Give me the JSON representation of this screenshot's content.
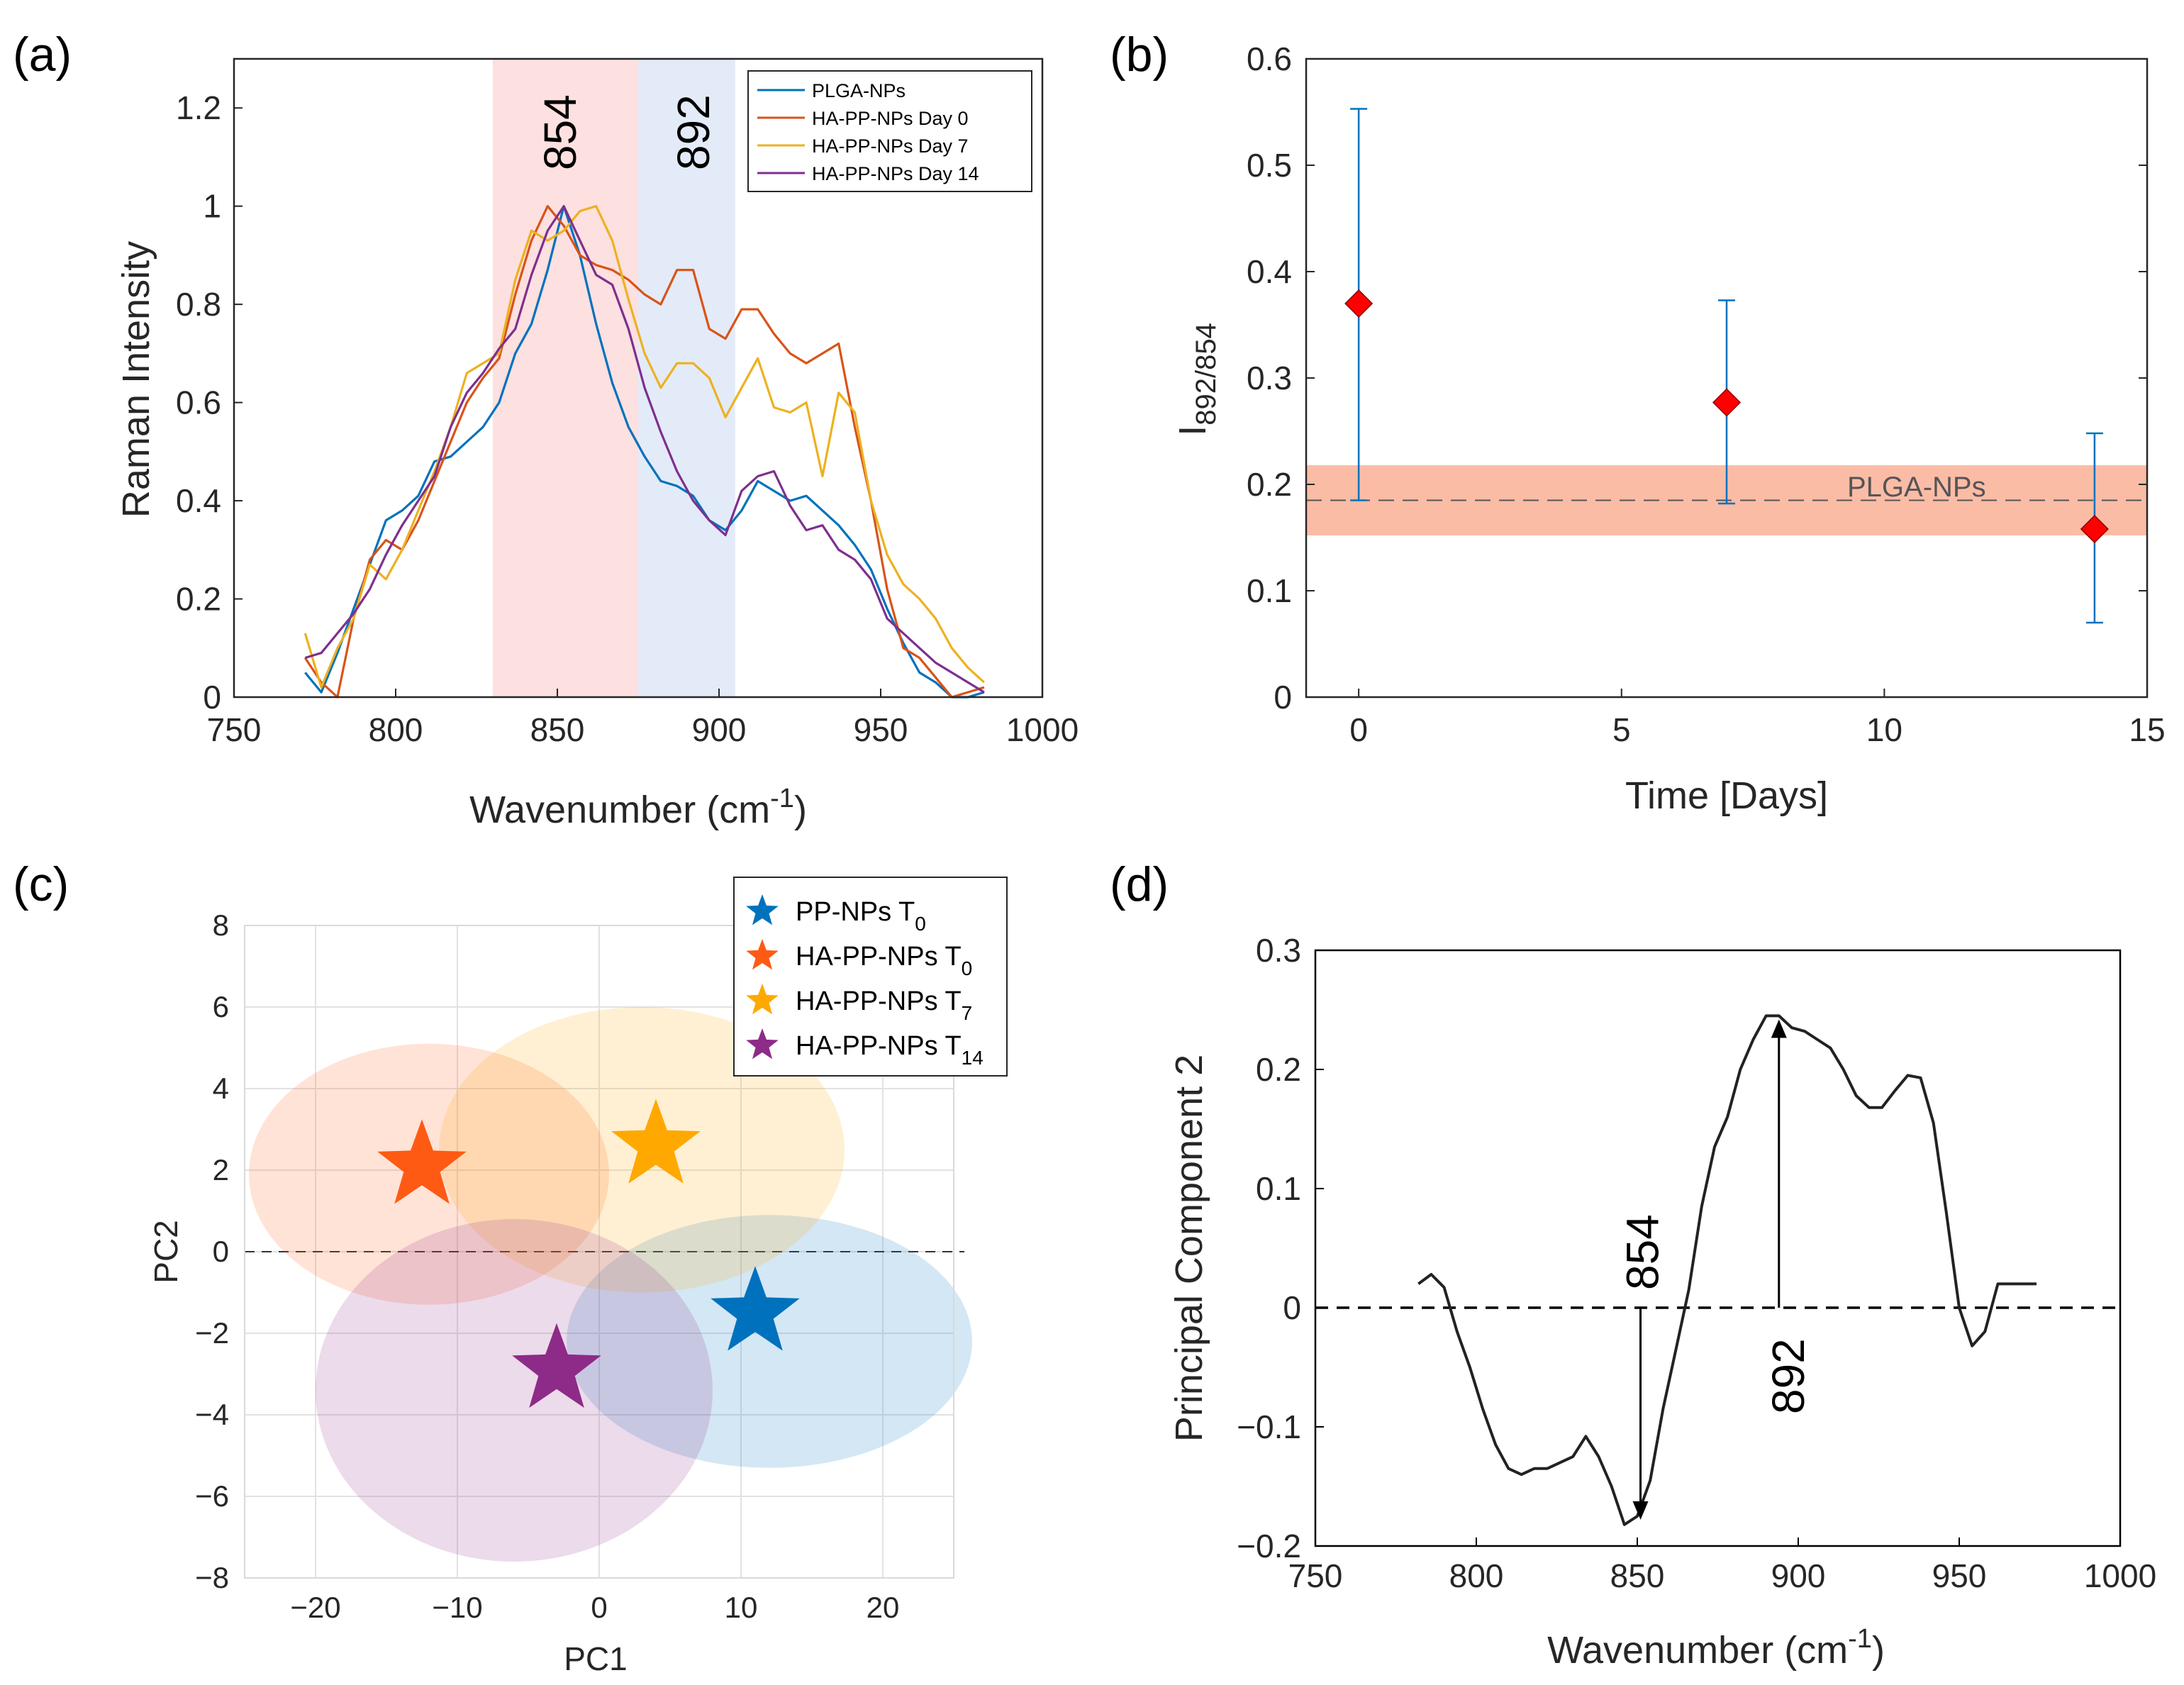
{
  "panels": {
    "a": {
      "label": "(a)"
    },
    "b": {
      "label": "(b)"
    },
    "c": {
      "label": "(c)"
    },
    "d": {
      "label": "(d)"
    }
  },
  "chart_data": [
    {
      "id": "a",
      "type": "line",
      "xlabel": "Wavenumber (cm",
      "xlabel_sup": "-1",
      "xlabel_end": ")",
      "ylabel": "Raman Intensity",
      "xlim": [
        750,
        1000
      ],
      "ylim": [
        0,
        1.3
      ],
      "xticks": [
        750,
        800,
        850,
        900,
        950,
        1000
      ],
      "yticks": [
        0,
        0.2,
        0.4,
        0.6,
        0.8,
        1,
        1.2
      ],
      "yticklabels": [
        "0",
        "0.2",
        "0.4",
        "0.6",
        "0.8",
        "1",
        "1.2"
      ],
      "bands": [
        {
          "label": "854",
          "from": 830,
          "to": 875,
          "color": "#fde0e0"
        },
        {
          "label": "892",
          "from": 875,
          "to": 905,
          "color": "#e3ebf8"
        }
      ],
      "x": [
        772,
        777,
        782,
        787,
        792,
        797,
        802,
        807,
        812,
        817,
        822,
        827,
        832,
        837,
        842,
        847,
        852,
        857,
        862,
        867,
        872,
        877,
        882,
        887,
        892,
        897,
        902,
        907,
        912,
        917,
        922,
        927,
        932,
        937,
        942,
        947,
        952,
        957,
        962,
        967,
        972,
        977,
        982
      ],
      "series": [
        {
          "name": "PLGA-NPs",
          "color": "#0072bd",
          "values": [
            0.05,
            0.01,
            0.09,
            0.18,
            0.27,
            0.36,
            0.38,
            0.41,
            0.48,
            0.49,
            0.52,
            0.55,
            0.6,
            0.7,
            0.76,
            0.87,
            1.0,
            0.9,
            0.76,
            0.64,
            0.55,
            0.49,
            0.44,
            0.43,
            0.41,
            0.36,
            0.34,
            0.38,
            0.44,
            0.42,
            0.4,
            0.41,
            0.38,
            0.35,
            0.31,
            0.26,
            0.18,
            0.11,
            0.05,
            0.03,
            0.0,
            0.0,
            0.01
          ]
        },
        {
          "name": "HA-PP-NPs Day 0",
          "color": "#d95319",
          "values": [
            0.08,
            0.03,
            0.0,
            0.16,
            0.28,
            0.32,
            0.3,
            0.36,
            0.44,
            0.52,
            0.6,
            0.65,
            0.69,
            0.82,
            0.93,
            1.0,
            0.96,
            0.9,
            0.88,
            0.87,
            0.85,
            0.82,
            0.8,
            0.87,
            0.87,
            0.75,
            0.73,
            0.79,
            0.79,
            0.74,
            0.7,
            0.68,
            0.7,
            0.72,
            0.55,
            0.4,
            0.22,
            0.1,
            0.08,
            0.04,
            0.0,
            0.01,
            0.02
          ]
        },
        {
          "name": "HA-PP-NPs Day 7",
          "color": "#edb120",
          "values": [
            0.13,
            0.02,
            0.1,
            0.16,
            0.27,
            0.24,
            0.3,
            0.38,
            0.46,
            0.55,
            0.66,
            0.68,
            0.7,
            0.85,
            0.95,
            0.93,
            0.95,
            0.99,
            1.0,
            0.93,
            0.81,
            0.7,
            0.63,
            0.68,
            0.68,
            0.65,
            0.57,
            0.63,
            0.69,
            0.59,
            0.58,
            0.6,
            0.45,
            0.62,
            0.58,
            0.4,
            0.29,
            0.23,
            0.2,
            0.16,
            0.1,
            0.06,
            0.03
          ]
        },
        {
          "name": "HA-PP-NPs Day 14",
          "color": "#7e2f8e",
          "values": [
            0.08,
            0.09,
            0.13,
            0.17,
            0.22,
            0.29,
            0.35,
            0.4,
            0.45,
            0.55,
            0.62,
            0.66,
            0.71,
            0.75,
            0.86,
            0.95,
            1.0,
            0.93,
            0.86,
            0.84,
            0.75,
            0.63,
            0.54,
            0.46,
            0.4,
            0.36,
            0.33,
            0.42,
            0.45,
            0.46,
            0.39,
            0.34,
            0.35,
            0.3,
            0.28,
            0.24,
            0.16,
            0.13,
            0.1,
            0.07,
            0.05,
            0.03,
            0.01
          ]
        }
      ],
      "legend_position": "top-right"
    },
    {
      "id": "b",
      "type": "scatter",
      "xlabel": "Time [Days]",
      "ylabel": "I",
      "ylabel_sub": "892/854",
      "xlim": [
        -1,
        15
      ],
      "ylim": [
        0,
        0.6
      ],
      "xticks": [
        0,
        5,
        10,
        15
      ],
      "yticks": [
        0,
        0.1,
        0.2,
        0.3,
        0.4,
        0.5,
        0.6
      ],
      "points": [
        {
          "x": 0,
          "y": 0.37,
          "err_low": 0.185,
          "err_high": 0.553
        },
        {
          "x": 7,
          "y": 0.277,
          "err_low": 0.182,
          "err_high": 0.373
        },
        {
          "x": 14,
          "y": 0.158,
          "err_low": 0.07,
          "err_high": 0.248
        }
      ],
      "reference": {
        "label": "PLGA-NPs",
        "mean": 0.185,
        "low": 0.152,
        "high": 0.218
      },
      "marker_color": "#ff0000",
      "errorbar_color": "#0072bd",
      "band_color": "#fbbca6"
    },
    {
      "id": "c",
      "type": "scatter",
      "xlabel": "PC1",
      "ylabel": "PC2",
      "xlim": [
        -25,
        25
      ],
      "ylim": [
        -8,
        8
      ],
      "xticks": [
        -20,
        -10,
        0,
        10,
        20
      ],
      "xticklabels": [
        "−20",
        "−10",
        "0",
        "10",
        "20"
      ],
      "yticks": [
        -8,
        -6,
        -4,
        -2,
        0,
        2,
        4,
        6,
        8
      ],
      "yticklabels": [
        "−8",
        "−6",
        "−4",
        "−2",
        "0",
        "2",
        "4",
        "6",
        "8"
      ],
      "grid": true,
      "series": [
        {
          "name": "PP-NPs T",
          "sub": "0",
          "color": "#0072bd",
          "x": 11,
          "y": -1.5,
          "ellipse": {
            "cx": 12,
            "cy": -2.2,
            "rx": 14.3,
            "ry": 3.1
          }
        },
        {
          "name": "HA-PP-NPs T",
          "sub": "0",
          "color": "#ff5a14",
          "x": -12.5,
          "y": 2.1,
          "ellipse": {
            "cx": -12,
            "cy": 1.9,
            "rx": 12.7,
            "ry": 3.2
          }
        },
        {
          "name": "HA-PP-NPs T",
          "sub": "7",
          "color": "#ffa800",
          "x": 4,
          "y": 2.6,
          "ellipse": {
            "cx": 3,
            "cy": 2.5,
            "rx": 14.3,
            "ry": 3.5
          }
        },
        {
          "name": "HA-PP-NPs T",
          "sub": "14",
          "color": "#8e2a87",
          "x": -3,
          "y": -2.9,
          "ellipse": {
            "cx": -6,
            "cy": -3.4,
            "rx": 14,
            "ry": 4.2
          }
        }
      ],
      "legend_position": "top-right"
    },
    {
      "id": "d",
      "type": "line",
      "xlabel": "Wavenumber (cm",
      "xlabel_sup": "-1",
      "xlabel_end": ")",
      "ylabel": "Principal Component 2",
      "xlim": [
        750,
        1000
      ],
      "ylim": [
        -0.2,
        0.3
      ],
      "xticks": [
        750,
        800,
        850,
        900,
        950,
        1000
      ],
      "yticks": [
        -0.2,
        -0.1,
        0,
        0.1,
        0.2,
        0.3
      ],
      "yticklabels": [
        "−0.2",
        "−0.1",
        "0",
        "0.1",
        "0.2",
        "0.3"
      ],
      "x": [
        782,
        786,
        790,
        794,
        798,
        802,
        806,
        810,
        814,
        818,
        822,
        826,
        830,
        834,
        838,
        842,
        846,
        850,
        854,
        858,
        862,
        866,
        870,
        874,
        878,
        882,
        886,
        890,
        894,
        898,
        902,
        906,
        910,
        914,
        918,
        922,
        926,
        930,
        934,
        938,
        942,
        946,
        950,
        954,
        958,
        962,
        966,
        970,
        974
      ],
      "values": [
        0.02,
        0.028,
        0.017,
        -0.02,
        -0.05,
        -0.085,
        -0.115,
        -0.135,
        -0.14,
        -0.135,
        -0.135,
        -0.13,
        -0.125,
        -0.108,
        -0.125,
        -0.15,
        -0.182,
        -0.175,
        -0.145,
        -0.085,
        -0.035,
        0.015,
        0.085,
        0.135,
        0.16,
        0.2,
        0.225,
        0.245,
        0.245,
        0.235,
        0.232,
        0.225,
        0.218,
        0.2,
        0.178,
        0.168,
        0.168,
        0.182,
        0.195,
        0.193,
        0.155,
        0.08,
        0.0,
        -0.032,
        -0.02,
        0.02,
        0.02,
        0.02,
        0.02
      ],
      "line_color": "#222222",
      "annotations": [
        {
          "label": "854",
          "x": 851,
          "from": 0,
          "to": -0.178
        },
        {
          "label": "892",
          "x": 894,
          "from": 0,
          "to": 0.242
        }
      ]
    }
  ]
}
